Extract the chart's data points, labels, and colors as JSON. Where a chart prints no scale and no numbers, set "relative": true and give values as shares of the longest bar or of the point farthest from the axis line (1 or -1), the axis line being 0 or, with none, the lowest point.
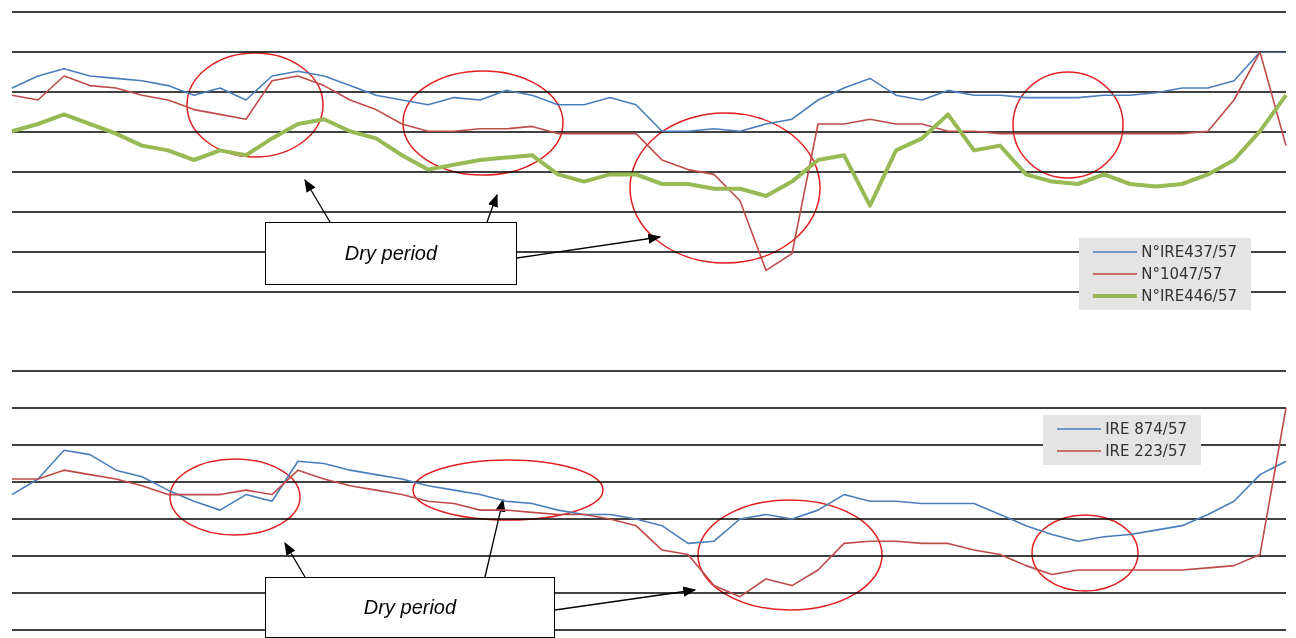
{
  "chart_data": [
    {
      "type": "line",
      "relative": true,
      "grid": "y",
      "legend": "bottom right",
      "marker": "none",
      "annotations": [
        "Dry period"
      ],
      "categories": [
        null,
        null,
        null,
        null,
        null,
        null,
        null,
        null,
        null,
        null,
        null,
        null,
        null,
        null,
        null,
        null,
        null,
        null,
        null,
        null,
        null,
        null,
        null,
        null,
        null,
        null,
        null,
        null,
        null,
        null,
        null,
        null,
        null,
        null,
        null,
        null,
        null,
        null,
        null,
        null,
        null,
        null,
        null,
        null,
        null,
        null,
        null,
        null,
        null,
        null
      ],
      "series": [
        {
          "name": "N°IRE437/57",
          "color": "#4a7ebb",
          "values": [
            0.85,
            0.9,
            0.93,
            0.9,
            0.89,
            0.88,
            0.86,
            0.82,
            0.85,
            0.8,
            0.9,
            0.92,
            0.9,
            0.86,
            0.82,
            0.8,
            0.78,
            0.81,
            0.8,
            0.84,
            0.82,
            0.78,
            0.78,
            0.81,
            0.78,
            0.67,
            0.67,
            0.68,
            0.67,
            0.7,
            0.72,
            0.8,
            0.85,
            0.89,
            0.82,
            0.8,
            0.84,
            0.82,
            0.82,
            0.81,
            0.81,
            0.81,
            0.82,
            0.82,
            0.83,
            0.85,
            0.85,
            0.88,
            1,
            1
          ]
        },
        {
          "name": "N°1047/57",
          "color": "#be4b48",
          "values": [
            0.82,
            0.8,
            0.9,
            0.86,
            0.85,
            0.82,
            0.8,
            0.76,
            0.74,
            0.72,
            0.88,
            0.9,
            0.86,
            0.8,
            0.76,
            0.7,
            0.67,
            0.67,
            0.68,
            0.68,
            0.69,
            0.66,
            0.66,
            0.66,
            0.66,
            0.55,
            0.51,
            0.49,
            0.38,
            0.09,
            0.16,
            0.7,
            0.7,
            0.72,
            0.7,
            0.7,
            0.67,
            0.67,
            0.66,
            0.66,
            0.66,
            0.66,
            0.66,
            0.66,
            0.66,
            0.66,
            0.67,
            0.8,
            1,
            0.61
          ]
        },
        {
          "name": "N°IRE446/57",
          "color": "#98b954",
          "values": [
            0.67,
            0.7,
            0.74,
            0.7,
            0.66,
            0.61,
            0.59,
            0.55,
            0.59,
            0.57,
            0.64,
            0.7,
            0.72,
            0.67,
            0.64,
            0.57,
            0.51,
            0.53,
            0.55,
            0.56,
            0.57,
            0.49,
            0.46,
            0.49,
            0.49,
            0.45,
            0.45,
            0.43,
            0.43,
            0.4,
            0.46,
            0.55,
            0.57,
            0.36,
            0.59,
            0.64,
            0.74,
            0.59,
            0.61,
            0.49,
            0.46,
            0.45,
            0.49,
            0.45,
            0.44,
            0.45,
            0.49,
            0.55,
            0.67,
            0.82
          ]
        }
      ]
    },
    {
      "type": "line",
      "relative": true,
      "grid": "y",
      "legend": "top right",
      "marker": "none",
      "annotations": [
        "Dry period"
      ],
      "categories": [
        null,
        null,
        null,
        null,
        null,
        null,
        null,
        null,
        null,
        null,
        null,
        null,
        null,
        null,
        null,
        null,
        null,
        null,
        null,
        null,
        null,
        null,
        null,
        null,
        null,
        null,
        null,
        null,
        null,
        null,
        null,
        null,
        null,
        null,
        null,
        null,
        null,
        null,
        null,
        null,
        null,
        null,
        null,
        null,
        null,
        null,
        null,
        null,
        null,
        null
      ],
      "series": [
        {
          "name": "IRE 874/57",
          "color": "#4a7ebb",
          "values": [
            0.61,
            0.68,
            0.81,
            0.79,
            0.72,
            0.69,
            0.63,
            0.58,
            0.54,
            0.61,
            0.58,
            0.76,
            0.75,
            0.72,
            0.7,
            0.68,
            0.65,
            0.63,
            0.61,
            0.58,
            0.57,
            0.54,
            0.52,
            0.52,
            0.5,
            0.47,
            0.39,
            0.4,
            0.5,
            0.52,
            0.5,
            0.54,
            0.61,
            0.58,
            0.58,
            0.57,
            0.57,
            0.57,
            0.52,
            0.47,
            0.43,
            0.4,
            0.42,
            0.43,
            0.45,
            0.47,
            0.52,
            0.58,
            0.7,
            0.76
          ]
        },
        {
          "name": "IRE 223/57",
          "color": "#be4b48",
          "values": [
            0.68,
            0.68,
            0.72,
            0.7,
            0.68,
            0.65,
            0.61,
            0.61,
            0.61,
            0.63,
            0.61,
            0.72,
            0.68,
            0.65,
            0.63,
            0.61,
            0.58,
            0.57,
            0.54,
            0.54,
            0.53,
            0.52,
            0.52,
            0.5,
            0.47,
            0.36,
            0.34,
            0.2,
            0.15,
            0.23,
            0.2,
            0.27,
            0.39,
            0.4,
            0.4,
            0.39,
            0.39,
            0.36,
            0.34,
            0.29,
            0.25,
            0.27,
            0.27,
            0.27,
            0.27,
            0.27,
            0.28,
            0.29,
            0.34,
            1
          ]
        }
      ]
    }
  ]
}
